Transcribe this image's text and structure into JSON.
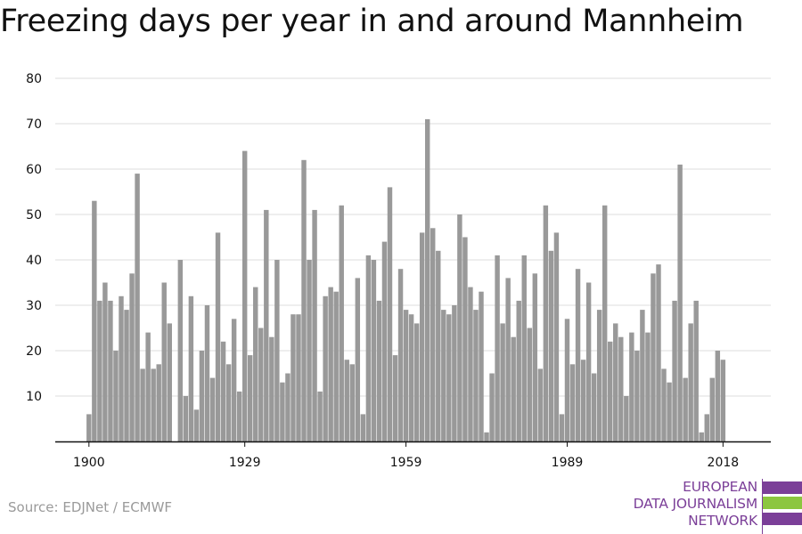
{
  "title": "Freezing days per year in and around Mannheim",
  "source": "Source: EDJNet / ECMWF",
  "logo": {
    "lines": [
      "EUROPEAN",
      "DATA JOURNALISM",
      "NETWORK"
    ],
    "colors": {
      "purple": "#7b3f98",
      "green": "#8cc63f"
    }
  },
  "colors": {
    "bar": "#999999",
    "grid": "#dddddd",
    "axis": "#111111"
  },
  "chart_data": {
    "type": "bar",
    "title": "Freezing days per year in and around Mannheim",
    "xlabel": "",
    "ylabel": "",
    "ylim": [
      0,
      80
    ],
    "yticks": [
      10,
      20,
      30,
      40,
      50,
      60,
      70,
      80
    ],
    "xticks": [
      1900,
      1929,
      1959,
      1989,
      2018
    ],
    "grid": true,
    "x": [
      1900,
      1901,
      1902,
      1903,
      1904,
      1905,
      1906,
      1907,
      1908,
      1909,
      1910,
      1911,
      1912,
      1913,
      1914,
      1915,
      1916,
      1917,
      1918,
      1919,
      1920,
      1921,
      1922,
      1923,
      1924,
      1925,
      1926,
      1927,
      1928,
      1929,
      1930,
      1931,
      1932,
      1933,
      1934,
      1935,
      1936,
      1937,
      1938,
      1939,
      1940,
      1941,
      1942,
      1943,
      1944,
      1945,
      1946,
      1947,
      1948,
      1949,
      1950,
      1951,
      1952,
      1953,
      1954,
      1955,
      1956,
      1957,
      1958,
      1959,
      1960,
      1961,
      1962,
      1963,
      1964,
      1965,
      1966,
      1967,
      1968,
      1969,
      1970,
      1971,
      1972,
      1973,
      1974,
      1975,
      1976,
      1977,
      1978,
      1979,
      1980,
      1981,
      1982,
      1983,
      1984,
      1985,
      1986,
      1987,
      1988,
      1989,
      1990,
      1991,
      1992,
      1993,
      1994,
      1995,
      1996,
      1997,
      1998,
      1999,
      2000,
      2001,
      2002,
      2003,
      2004,
      2005,
      2006,
      2007,
      2008,
      2009,
      2010,
      2011,
      2012,
      2013,
      2014,
      2015,
      2016,
      2017,
      2018
    ],
    "values": [
      6,
      53,
      31,
      35,
      31,
      20,
      32,
      29,
      37,
      59,
      16,
      24,
      16,
      17,
      35,
      26,
      0,
      40,
      10,
      32,
      7,
      20,
      30,
      14,
      46,
      22,
      17,
      27,
      11,
      64,
      19,
      34,
      25,
      51,
      23,
      40,
      13,
      15,
      28,
      28,
      62,
      40,
      51,
      11,
      32,
      34,
      33,
      52,
      18,
      17,
      36,
      6,
      41,
      40,
      31,
      44,
      56,
      19,
      38,
      29,
      28,
      26,
      46,
      71,
      47,
      42,
      29,
      28,
      30,
      50,
      45,
      34,
      29,
      33,
      2,
      15,
      41,
      26,
      36,
      23,
      31,
      41,
      25,
      37,
      16,
      52,
      42,
      46,
      6,
      27,
      17,
      38,
      18,
      35,
      15,
      29,
      52,
      22,
      26,
      23,
      10,
      24,
      20,
      29,
      24,
      37,
      39,
      16,
      13,
      31,
      61,
      14,
      26,
      31,
      2,
      6,
      14,
      20,
      18
    ]
  }
}
